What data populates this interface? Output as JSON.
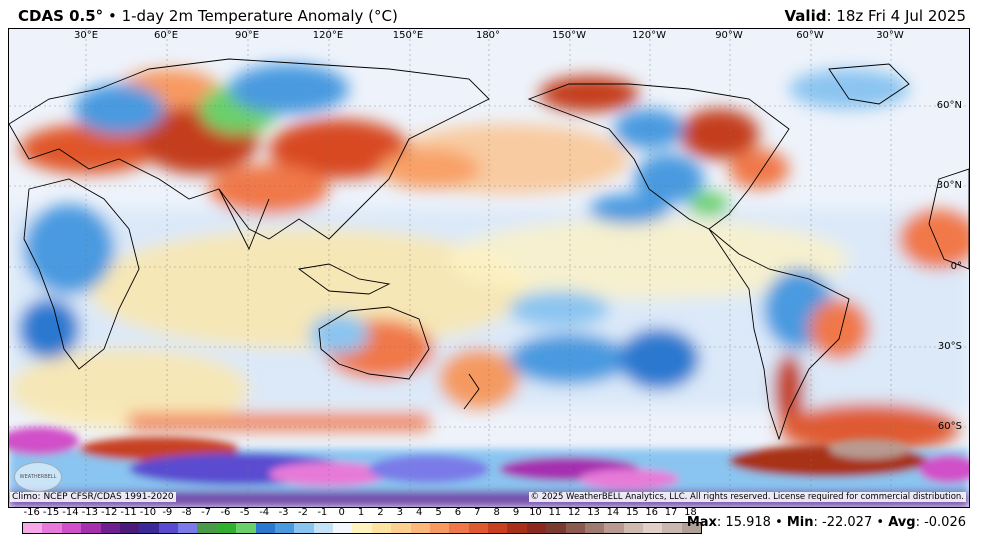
{
  "header": {
    "model": "CDAS 0.5°",
    "separator": "•",
    "product": "1-day 2m Temperature Anomaly (°C)",
    "valid_label": "Valid",
    "valid_time": ": 18z Fri 4 Jul 2025"
  },
  "map": {
    "lon_labels": [
      "30°E",
      "60°E",
      "90°E",
      "120°E",
      "150°E",
      "180°",
      "150°W",
      "120°W",
      "90°W",
      "60°W",
      "30°W"
    ],
    "lat_labels": [
      "60°N",
      "30°N",
      "0°",
      "30°S",
      "60°S"
    ],
    "logo_text": "WEATHERBELL"
  },
  "footer": {
    "climo": "Climo: NCEP CFSR/CDAS 1991-2020",
    "copyright": "© 2025 WeatherBELL Analytics, LLC. All rights reserved. License required for commercial distribution."
  },
  "colorbar": {
    "labels": [
      "-16",
      "-15",
      "-14",
      "-13",
      "-12",
      "-11",
      "-10",
      "-9",
      "-8",
      "-7",
      "-6",
      "-5",
      "-4",
      "-3",
      "-2",
      "-1",
      "0",
      "1",
      "2",
      "3",
      "4",
      "5",
      "6",
      "7",
      "8",
      "9",
      "10",
      "11",
      "12",
      "13",
      "14",
      "15",
      "16",
      "17",
      "18"
    ],
    "colors": [
      "#f7a8e8",
      "#e77ad8",
      "#d14fc8",
      "#a62fb0",
      "#6f1f8f",
      "#4b1a7a",
      "#3c2a9a",
      "#5a4bd0",
      "#7a7ae8",
      "#4a9a4a",
      "#2fb02f",
      "#6ad06a",
      "#2a78d0",
      "#4a9ae0",
      "#8ac4f0",
      "#c4e2f8",
      "#f4f7fd",
      "#fdf4c0",
      "#fde4a0",
      "#fcd090",
      "#fbb878",
      "#f89a60",
      "#f07848",
      "#e05a30",
      "#c84020",
      "#a83018",
      "#8c2820",
      "#7a3a30",
      "#8a5a50",
      "#a07a70",
      "#b89a90",
      "#d0bab0",
      "#e0d0c8",
      "#c8b8b0",
      "#b0a098"
    ]
  },
  "stats": {
    "max_label": "Max",
    "max_value": ": 15.918",
    "min_label": "Min",
    "min_value": ": -22.027",
    "avg_label": "Avg",
    "avg_value": ": -0.026",
    "sep": "•"
  }
}
